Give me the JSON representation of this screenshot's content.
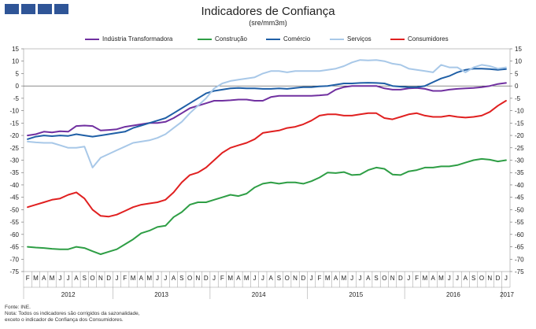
{
  "logo": "INE",
  "chart_data": {
    "type": "line",
    "title": "Indicadores de Confiança",
    "subtitle": "(sre/mm3m)",
    "ylim": [
      -75,
      15
    ],
    "yticks": [
      15,
      10,
      5,
      0,
      -5,
      -10,
      -15,
      -20,
      -25,
      -30,
      -35,
      -40,
      -45,
      -50,
      -55,
      -60,
      -65,
      -70,
      -75
    ],
    "month_labels": [
      "F",
      "M",
      "A",
      "M",
      "J",
      "J",
      "A",
      "S",
      "O",
      "N",
      "D",
      "J",
      "F",
      "M",
      "A",
      "M",
      "J",
      "J",
      "A",
      "S",
      "O",
      "N",
      "D",
      "J",
      "F",
      "M",
      "A",
      "M",
      "J",
      "J",
      "A",
      "S",
      "O",
      "N",
      "D",
      "J",
      "F",
      "M",
      "A",
      "M",
      "J",
      "J",
      "A",
      "S",
      "O",
      "N",
      "D",
      "J",
      "F",
      "M",
      "A",
      "M",
      "J",
      "J",
      "A",
      "S",
      "O",
      "N",
      "D",
      "J"
    ],
    "years": [
      "2012",
      "2013",
      "2014",
      "2015",
      "2016",
      "2017"
    ],
    "series": [
      {
        "name": "Indústria Transformadora",
        "color": "#7030a0",
        "values": [
          -20,
          -19.5,
          -18.5,
          -18.8,
          -18.3,
          -18.5,
          -16.2,
          -16,
          -16.2,
          -18,
          -17.8,
          -17.5,
          -16.5,
          -16,
          -15.5,
          -15,
          -15,
          -14.5,
          -13,
          -11,
          -9,
          -8,
          -7,
          -6,
          -6,
          -5.8,
          -5.5,
          -5.5,
          -6,
          -6,
          -4.5,
          -4,
          -4,
          -4,
          -4,
          -4,
          -3.8,
          -3.5,
          -1.5,
          -0.5,
          0,
          0,
          0,
          0,
          -1,
          -1.5,
          -1.5,
          -1,
          -0.8,
          -1.2,
          -2,
          -2,
          -1.5,
          -1.2,
          -1,
          -0.8,
          -0.5,
          0,
          0.8,
          1.2
        ]
      },
      {
        "name": "Construção",
        "color": "#2e9e45",
        "values": [
          -65,
          -65.3,
          -65.5,
          -65.8,
          -66,
          -66,
          -65,
          -65.5,
          -66.8,
          -68,
          -67,
          -66,
          -64,
          -62,
          -59.5,
          -58.5,
          -57,
          -56.5,
          -53,
          -51,
          -48,
          -47,
          -47,
          -46,
          -45,
          -44,
          -44.5,
          -43.5,
          -41,
          -39.5,
          -39,
          -39.5,
          -39,
          -39,
          -39.5,
          -38.5,
          -37,
          -35,
          -35.2,
          -34.8,
          -36,
          -35.8,
          -34,
          -33,
          -33.5,
          -35.8,
          -36,
          -34.5,
          -34,
          -33,
          -33,
          -32.5,
          -32.5,
          -32,
          -31,
          -30,
          -29.5,
          -29.8,
          -30.5,
          -30
        ]
      },
      {
        "name": "Comércio",
        "color": "#1f5fa6",
        "values": [
          -21.5,
          -20.5,
          -20,
          -20.3,
          -20,
          -20.2,
          -19.5,
          -20,
          -20.5,
          -20,
          -19.5,
          -19,
          -18.5,
          -17,
          -16,
          -15,
          -14,
          -13,
          -11,
          -9,
          -7,
          -5,
          -3,
          -2,
          -1.5,
          -1,
          -0.8,
          -1,
          -1,
          -1.2,
          -1.2,
          -1,
          -1.2,
          -0.8,
          -0.5,
          -0.5,
          -0.2,
          0,
          0.5,
          1,
          1,
          1.2,
          1.3,
          1.2,
          1,
          0,
          -0.3,
          -0.5,
          -0.5,
          0,
          1.5,
          3,
          4,
          5.5,
          6.5,
          7,
          7,
          6.8,
          6.5,
          6.8
        ]
      },
      {
        "name": "Serviços",
        "color": "#a8c8e8",
        "values": [
          -22.5,
          -22.8,
          -23,
          -23,
          -24,
          -25,
          -25,
          -24.5,
          -33,
          -29,
          -27.5,
          -26,
          -24.5,
          -23,
          -22.5,
          -22,
          -21,
          -19.5,
          -17,
          -14.5,
          -11,
          -8,
          -5,
          -1,
          1,
          2,
          2.5,
          3,
          3.5,
          5,
          6,
          6,
          5.5,
          6,
          6,
          6,
          6,
          6.5,
          7,
          8,
          9.5,
          10.5,
          10.3,
          10.5,
          10,
          9,
          8.5,
          7,
          6.5,
          6,
          5.5,
          8.5,
          7.5,
          7.5,
          5.5,
          7.5,
          8.5,
          8,
          7,
          7.5
        ]
      },
      {
        "name": "Consumidores",
        "color": "#e02020",
        "values": [
          -49,
          -48,
          -47,
          -46,
          -45.5,
          -44,
          -43,
          -45.5,
          -50,
          -52.5,
          -52.8,
          -52,
          -50.5,
          -49,
          -48,
          -47.5,
          -47,
          -46,
          -43,
          -39,
          -36,
          -35,
          -33,
          -30,
          -27,
          -25,
          -24,
          -23,
          -21.5,
          -19,
          -18.5,
          -18,
          -17,
          -16.5,
          -15.5,
          -14,
          -12,
          -11.5,
          -11.5,
          -12,
          -12,
          -11.5,
          -11,
          -11,
          -13,
          -13.5,
          -12.5,
          -11.5,
          -11,
          -12,
          -12.5,
          -12.5,
          -12,
          -12.5,
          -12.8,
          -12.5,
          -12,
          -10.5,
          -8,
          -6
        ]
      }
    ]
  },
  "notes": [
    "Fonte: INE.",
    "Nota: Todos os indicadores são corrigidos da sazonalidade,",
    "exceto o indicador de Confiança dos Consumidores."
  ]
}
